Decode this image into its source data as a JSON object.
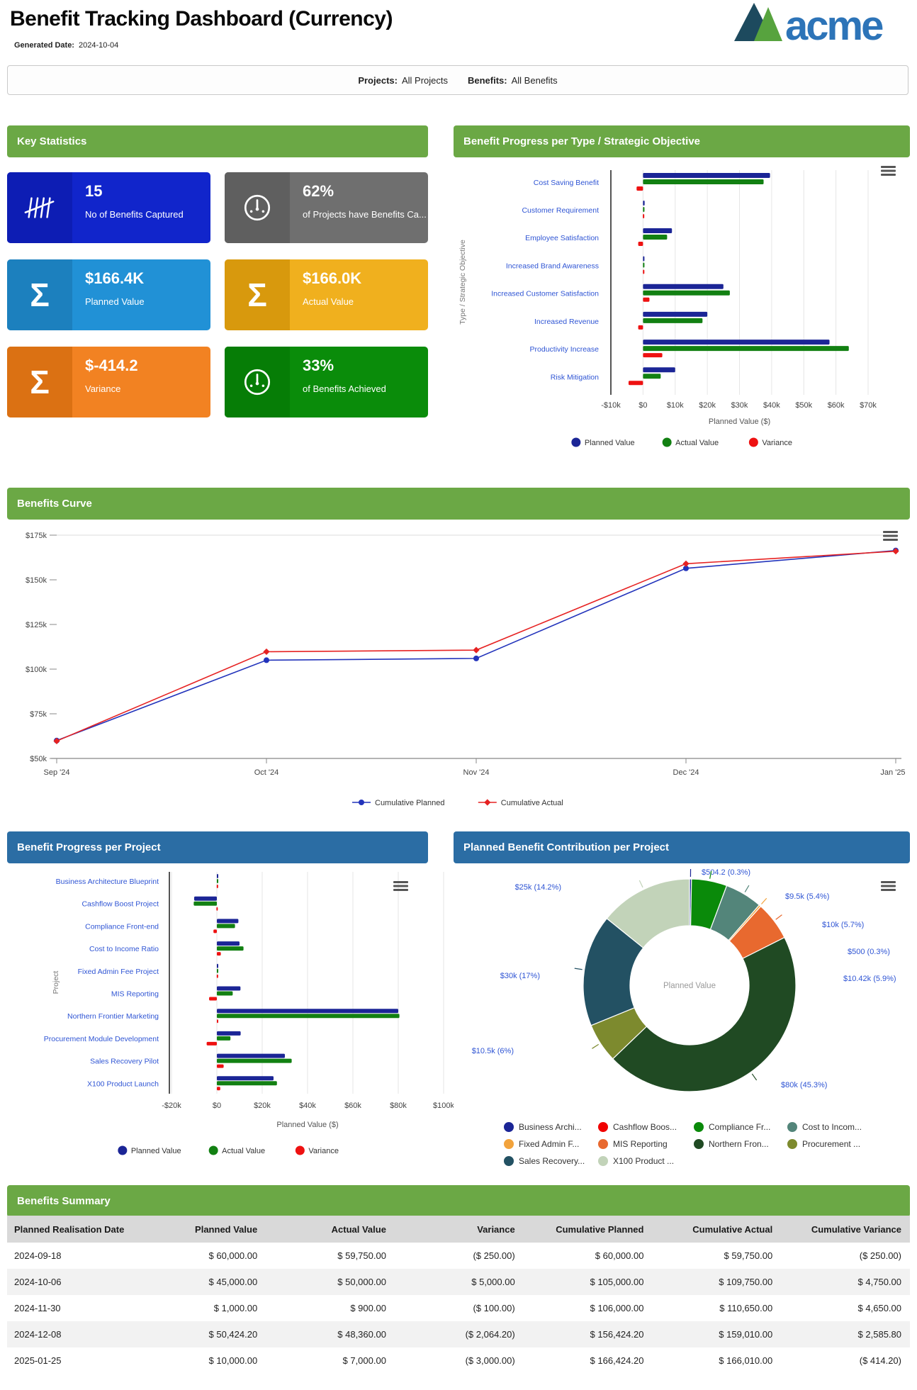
{
  "header": {
    "title": "Benefit Tracking Dashboard (Currency)",
    "generated_date_label": "Generated Date:",
    "generated_date": "2024-10-04",
    "logo_text": "acme"
  },
  "filter_bar": {
    "projects_label": "Projects:",
    "projects_value": "All Projects",
    "benefits_label": "Benefits:",
    "benefits_value": "All Benefits"
  },
  "colors": {
    "green_header": "#6BA845",
    "blue_header": "#2B6DA4",
    "table_header_bg": "#D9D9D9",
    "table_alt_row": "#F2F2F2",
    "negative_text": "#D40000",
    "category_label": "#2F55D4",
    "axis_text": "#444444",
    "logo_blue": "#2D74B8",
    "logo_dark_triangle": "#1D4A5E",
    "logo_green_triangle": "#57A33E"
  },
  "key_statistics": {
    "title": "Key Statistics",
    "cards": [
      {
        "icon": "tally-icon",
        "value": "15",
        "label": "No of Benefits Captured",
        "bg": "#1125CB",
        "icon_bg": "#0D1DB4"
      },
      {
        "icon": "gauge-icon",
        "value": "62%",
        "label": "of Projects have Benefits Ca...",
        "bg": "#6F6F6F",
        "icon_bg": "#5F5F5F"
      },
      {
        "icon": "sigma-icon",
        "value": "$166.4K",
        "label": "Planned Value",
        "bg": "#2191D6",
        "icon_bg": "#1C80BE"
      },
      {
        "icon": "sigma-icon",
        "value": "$166.0K",
        "label": "Actual Value",
        "bg": "#F0B01E",
        "icon_bg": "#D8990D"
      },
      {
        "icon": "sigma-icon",
        "value": "$-414.2",
        "label": "Variance",
        "bg": "#F28222",
        "icon_bg": "#DB7113"
      },
      {
        "icon": "gauge-icon",
        "value": "33%",
        "label": "of Benefits Achieved",
        "bg": "#0A8C0A",
        "icon_bg": "#067D06"
      }
    ]
  },
  "chart_data": [
    {
      "id": "benefit_progress_per_type",
      "type": "bar",
      "orientation": "horizontal",
      "title": "Benefit Progress per Type / Strategic Objective",
      "ylabel": "Type / Strategic Objective",
      "xlabel": "Planned Value ($)",
      "categories": [
        "Cost Saving Benefit",
        "Customer Requirement",
        "Employee Satisfaction",
        "Increased Brand Awareness",
        "Increased Customer Satisfaction",
        "Increased Revenue",
        "Productivity Increase",
        "Risk Mitigation"
      ],
      "series": [
        {
          "name": "Planned Value",
          "color": "#1B2596",
          "values": [
            39500,
            500,
            9000,
            300,
            25000,
            20000,
            58000,
            10000
          ]
        },
        {
          "name": "Actual Value",
          "color": "#128012",
          "values": [
            37500,
            450,
            7500,
            280,
            27000,
            18500,
            64000,
            5500
          ]
        },
        {
          "name": "Variance",
          "color": "#EE1111",
          "values": [
            -2000,
            -50,
            -1500,
            -20,
            2000,
            -1500,
            6000,
            -4500
          ]
        }
      ],
      "xlim": [
        -10000,
        70000
      ],
      "xticks": [
        "-$10k",
        "$0",
        "$10k",
        "$20k",
        "$30k",
        "$40k",
        "$50k",
        "$60k",
        "$70k"
      ],
      "legend_position": "bottom",
      "grid": true
    },
    {
      "id": "benefits_curve",
      "type": "line",
      "title": "Benefits Curve",
      "x": [
        "Sep '24",
        "Oct '24",
        "Nov '24",
        "Dec '24",
        "Jan '25"
      ],
      "series": [
        {
          "name": "Cumulative Planned",
          "color": "#2233BB",
          "marker": "circle",
          "values": [
            60000,
            105000,
            106000,
            156424.2,
            166424.2
          ]
        },
        {
          "name": "Cumulative Actual",
          "color": "#E62222",
          "marker": "diamond",
          "values": [
            59750,
            109750,
            110650,
            159010,
            166010
          ]
        }
      ],
      "ylim": [
        50000,
        175000
      ],
      "yticks": [
        "$50k",
        "$75k",
        "$100k",
        "$125k",
        "$150k",
        "$175k"
      ],
      "legend_position": "bottom",
      "grid": false
    },
    {
      "id": "benefit_progress_per_project",
      "type": "bar",
      "orientation": "horizontal",
      "title": "Benefit Progress per Project",
      "ylabel": "Project",
      "xlabel": "Planned Value ($)",
      "categories": [
        "Business Architecture Blueprint",
        "Cashflow Boost Project",
        "Compliance Front-end",
        "Cost to Income Ratio",
        "Fixed Admin Fee Project",
        "MIS Reporting",
        "Northern Frontier Marketing",
        "Procurement Module Development",
        "Sales Recovery Pilot",
        "X100 Product Launch"
      ],
      "series": [
        {
          "name": "Planned Value",
          "color": "#1B2596",
          "values": [
            504.2,
            -10000,
            9500,
            10000,
            500,
            10420,
            80000,
            10500,
            30000,
            25000
          ]
        },
        {
          "name": "Actual Value",
          "color": "#128012",
          "values": [
            450,
            -10200,
            8000,
            11750,
            450,
            7000,
            80500,
            6000,
            33000,
            26500
          ]
        },
        {
          "name": "Variance",
          "color": "#EE1111",
          "values": [
            -54.2,
            -200,
            -1500,
            1750,
            -50,
            -3420,
            500,
            -4500,
            3000,
            1500
          ]
        }
      ],
      "xlim": [
        -20000,
        100000
      ],
      "xticks": [
        "-$20k",
        "$0",
        "$20k",
        "$40k",
        "$60k",
        "$80k",
        "$100k"
      ],
      "legend_position": "bottom",
      "grid": true
    },
    {
      "id": "planned_benefit_contribution",
      "type": "pie",
      "title": "Planned Benefit Contribution per Project",
      "center_label": "Planned Value",
      "slices": [
        {
          "name": "Business Archi...",
          "value": 504.2,
          "pct": 0.3,
          "label": "$504.2 (0.3%)",
          "color": "#1B2596"
        },
        {
          "name": "Compliance Fr...",
          "value": 9500,
          "pct": 5.4,
          "label": "$9.5k (5.4%)",
          "color": "#0A8A0A"
        },
        {
          "name": "Cost to Incom...",
          "value": 10000,
          "pct": 5.7,
          "label": "$10k (5.7%)",
          "color": "#53857A"
        },
        {
          "name": "Fixed Admin F...",
          "value": 500,
          "pct": 0.3,
          "label": "$500 (0.3%)",
          "color": "#F2A33C"
        },
        {
          "name": "MIS Reporting",
          "value": 10420,
          "pct": 5.9,
          "label": "$10.42k (5.9%)",
          "color": "#E8692F"
        },
        {
          "name": "Northern Fron...",
          "value": 80000,
          "pct": 45.3,
          "label": "$80k (45.3%)",
          "color": "#204A23"
        },
        {
          "name": "Procurement ...",
          "value": 10500,
          "pct": 6.0,
          "label": "$10.5k (6%)",
          "color": "#7D8A2E"
        },
        {
          "name": "Sales Recovery...",
          "value": 30000,
          "pct": 17.0,
          "label": "$30k (17%)",
          "color": "#235163"
        },
        {
          "name": "X100 Product ...",
          "value": 25000,
          "pct": 14.2,
          "label": "$25k (14.2%)",
          "color": "#C2D3B9"
        }
      ],
      "legend": [
        {
          "name": "Business Archi...",
          "color": "#1B2596"
        },
        {
          "name": "Cashflow Boos...",
          "color": "#F00000"
        },
        {
          "name": "Compliance Fr...",
          "color": "#0A8A0A"
        },
        {
          "name": "Cost to Incom...",
          "color": "#53857A"
        },
        {
          "name": "Fixed Admin F...",
          "color": "#F2A33C"
        },
        {
          "name": "MIS Reporting",
          "color": "#E8692F"
        },
        {
          "name": "Northern Fron...",
          "color": "#204A23"
        },
        {
          "name": "Procurement ...",
          "color": "#7D8A2E"
        },
        {
          "name": "Sales Recovery...",
          "color": "#235163"
        },
        {
          "name": "X100 Product ...",
          "color": "#C2D3B9"
        }
      ],
      "legend_position": "bottom"
    }
  ],
  "summary_table": {
    "title": "Benefits Summary",
    "columns": [
      "Planned Realisation Date",
      "Planned Value",
      "Actual Value",
      "Variance",
      "Cumulative Planned",
      "Cumulative Actual",
      "Cumulative Variance"
    ],
    "rows": [
      [
        "2024-09-18",
        "$ 60,000.00",
        "$ 59,750.00",
        "($ 250.00)",
        "$ 60,000.00",
        "$ 59,750.00",
        "($ 250.00)"
      ],
      [
        "2024-10-06",
        "$ 45,000.00",
        "$ 50,000.00",
        "$ 5,000.00",
        "$ 105,000.00",
        "$ 109,750.00",
        "$ 4,750.00"
      ],
      [
        "2024-11-30",
        "$ 1,000.00",
        "$ 900.00",
        "($ 100.00)",
        "$ 106,000.00",
        "$ 110,650.00",
        "$ 4,650.00"
      ],
      [
        "2024-12-08",
        "$ 50,424.20",
        "$ 48,360.00",
        "($ 2,064.20)",
        "$ 156,424.20",
        "$ 159,010.00",
        "$ 2,585.80"
      ],
      [
        "2025-01-25",
        "$ 10,000.00",
        "$ 7,000.00",
        "($ 3,000.00)",
        "$ 166,424.20",
        "$ 166,010.00",
        "($ 414.20)"
      ]
    ]
  }
}
